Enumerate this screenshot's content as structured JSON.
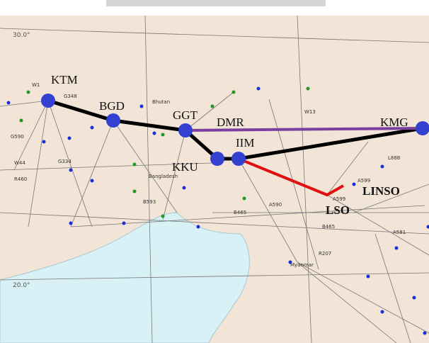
{
  "map": {
    "nodes": [
      {
        "label": "KTM"
      },
      {
        "label": "BGD"
      },
      {
        "label": "GGT"
      },
      {
        "label": "DMR"
      },
      {
        "label": "IIM"
      },
      {
        "label": "KKU"
      },
      {
        "label": "KMG"
      },
      {
        "label": "LSO"
      },
      {
        "label": "LINSO"
      }
    ],
    "grid_labels": [
      "30.0°",
      "20.0°"
    ],
    "place_labels": [
      "Bhutan",
      "Bangladesh",
      "Myanmar"
    ],
    "airway_labels": [
      "G348",
      "W1",
      "G590",
      "W44",
      "R460",
      "G334",
      "A599",
      "B465",
      "A599",
      "L888",
      "B593",
      "A590",
      "W13",
      "B465",
      "R207",
      "A581"
    ]
  }
}
